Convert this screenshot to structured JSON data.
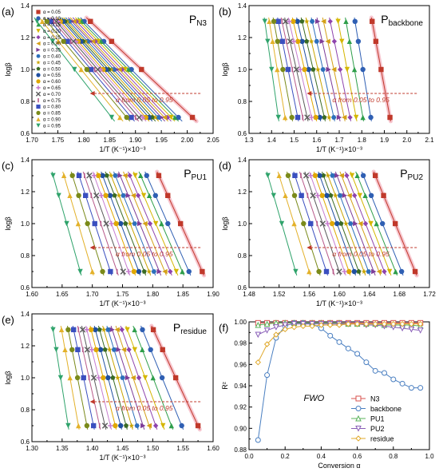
{
  "figure": {
    "caption": ""
  },
  "chart_data": [
    {
      "id": "a",
      "type": "scatter",
      "panel_label": "(a)",
      "title": "P",
      "title_sub": "N3",
      "xlabel": "1/T (K⁻¹)×10⁻³",
      "ylabel": "logβ",
      "xlim": [
        1.7,
        2.05
      ],
      "ylim": [
        0.6,
        1.4
      ],
      "xticks": [
        "1.70",
        "1.75",
        "1.80",
        "1.85",
        "1.90",
        "1.95",
        "2.00",
        "2.05"
      ],
      "yticks": [
        "0.6",
        "0.8",
        "1.0",
        "1.2",
        "1.4"
      ],
      "annotation": "α from 0.05 to 0.95",
      "legend_position": "left",
      "y_levels": [
        0.7,
        1.0,
        1.176,
        1.301
      ],
      "alphas": [
        "0.05",
        "0.10",
        "0.15",
        "0.20",
        "0.25",
        "0.30",
        "0.35",
        "0.40",
        "0.45",
        "0.50",
        "0.55",
        "0.60",
        "0.65",
        "0.70",
        "0.75",
        "0.80",
        "0.85",
        "0.90",
        "0.95"
      ],
      "x_top": [
        1.813,
        1.801,
        1.796,
        1.791,
        1.786,
        1.781,
        1.777,
        1.772,
        1.768,
        1.764,
        1.76,
        1.755,
        1.751,
        1.747,
        1.742,
        1.736,
        1.729,
        1.72,
        1.71
      ],
      "x_bottom": [
        2.01,
        1.983,
        1.976,
        1.969,
        1.962,
        1.956,
        1.95,
        1.944,
        1.938,
        1.932,
        1.926,
        1.92,
        1.914,
        1.907,
        1.9,
        1.892,
        1.883,
        1.87,
        1.854
      ]
    },
    {
      "id": "b",
      "type": "scatter",
      "panel_label": "(b)",
      "title": "P",
      "title_sub": "backbone",
      "xlabel": "1/T (K⁻¹)×10⁻³",
      "ylabel": "logβ",
      "xlim": [
        1.3,
        2.1
      ],
      "ylim": [
        0.6,
        1.4
      ],
      "xticks": [
        "1.3",
        "1.4",
        "1.5",
        "1.6",
        "1.7",
        "1.8",
        "1.9",
        "2.0",
        "2.1"
      ],
      "yticks": [
        "0.6",
        "0.8",
        "1.0",
        "1.2",
        "1.4"
      ],
      "annotation": "α from 0.05 to 0.95",
      "y_levels": [
        0.7,
        1.0,
        1.176,
        1.301
      ],
      "x_top": [
        1.846,
        1.77,
        1.73,
        1.695,
        1.66,
        1.63,
        1.605,
        1.58,
        1.556,
        1.535,
        1.515,
        1.496,
        1.478,
        1.462,
        1.446,
        1.43,
        1.41,
        1.39,
        1.37
      ],
      "x_bottom": [
        1.925,
        1.84,
        1.805,
        1.775,
        1.748,
        1.722,
        1.7,
        1.676,
        1.655,
        1.634,
        1.614,
        1.596,
        1.577,
        1.558,
        1.538,
        1.516,
        1.49,
        1.46,
        1.43
      ]
    },
    {
      "id": "c",
      "type": "scatter",
      "panel_label": "(c)",
      "title": "P",
      "title_sub": "PU1",
      "xlabel": "1/T (K⁻¹)×10⁻³",
      "ylabel": "logβ",
      "xlim": [
        1.6,
        1.9
      ],
      "ylim": [
        0.6,
        1.4
      ],
      "xticks": [
        "1.60",
        "1.65",
        "1.70",
        "1.75",
        "1.80",
        "1.85",
        "1.90"
      ],
      "yticks": [
        "0.6",
        "0.8",
        "1.0",
        "1.2",
        "1.4"
      ],
      "annotation": "α from 0.05 to 0.95",
      "y_levels": [
        0.7,
        1.0,
        1.176,
        1.301
      ],
      "x_top": [
        1.81,
        1.79,
        1.78,
        1.771,
        1.762,
        1.754,
        1.746,
        1.738,
        1.731,
        1.724,
        1.717,
        1.71,
        1.703,
        1.695,
        1.687,
        1.678,
        1.667,
        1.653,
        1.635
      ],
      "x_bottom": [
        1.882,
        1.86,
        1.849,
        1.839,
        1.829,
        1.82,
        1.811,
        1.802,
        1.794,
        1.786,
        1.777,
        1.769,
        1.76,
        1.751,
        1.741,
        1.73,
        1.717,
        1.7,
        1.68
      ]
    },
    {
      "id": "d",
      "type": "scatter",
      "panel_label": "(d)",
      "title": "P",
      "title_sub": "PU2",
      "xlabel": "1/T (K⁻¹)×10⁻³",
      "ylabel": "logβ",
      "xlim": [
        1.48,
        1.72
      ],
      "ylim": [
        0.6,
        1.4
      ],
      "xticks": [
        "1.48",
        "1.52",
        "1.56",
        "1.60",
        "1.64",
        "1.68",
        "1.72"
      ],
      "yticks": [
        "0.6",
        "0.8",
        "1.0",
        "1.2",
        "1.4"
      ],
      "annotation": "α from 0.05 to 0.95",
      "y_levels": [
        0.7,
        1.0,
        1.176,
        1.301
      ],
      "x_top": [
        1.648,
        1.632,
        1.624,
        1.617,
        1.61,
        1.603,
        1.597,
        1.591,
        1.585,
        1.579,
        1.574,
        1.568,
        1.562,
        1.556,
        1.549,
        1.541,
        1.532,
        1.52,
        1.505
      ],
      "x_bottom": [
        1.701,
        1.683,
        1.675,
        1.667,
        1.66,
        1.653,
        1.646,
        1.639,
        1.633,
        1.626,
        1.62,
        1.613,
        1.607,
        1.6,
        1.592,
        1.583,
        1.573,
        1.56,
        1.542
      ]
    },
    {
      "id": "e",
      "type": "scatter",
      "panel_label": "(e)",
      "title": "P",
      "title_sub": "residue",
      "xlabel": "1/T (K⁻¹)×10⁻³",
      "ylabel": "logβ",
      "xlim": [
        1.3,
        1.6
      ],
      "ylim": [
        0.6,
        1.4
      ],
      "xticks": [
        "1.30",
        "1.35",
        "1.40",
        "1.45",
        "1.50",
        "1.55",
        "1.60"
      ],
      "yticks": [
        "0.6",
        "0.8",
        "1.0",
        "1.2",
        "1.4"
      ],
      "annotation": "α from 0.05 to 0.95",
      "y_levels": [
        0.7,
        1.0,
        1.176,
        1.301
      ],
      "x_top": [
        1.501,
        1.483,
        1.47,
        1.458,
        1.449,
        1.441,
        1.433,
        1.426,
        1.419,
        1.412,
        1.405,
        1.398,
        1.391,
        1.384,
        1.377,
        1.369,
        1.36,
        1.349,
        1.335
      ],
      "x_bottom": [
        1.575,
        1.548,
        1.531,
        1.517,
        1.505,
        1.494,
        1.484,
        1.474,
        1.465,
        1.456,
        1.447,
        1.438,
        1.43,
        1.421,
        1.412,
        1.402,
        1.391,
        1.377,
        1.36
      ]
    },
    {
      "id": "f",
      "type": "line",
      "panel_label": "(f)",
      "title": "",
      "annotation": "FWO",
      "xlabel": "Conversion α",
      "ylabel": "R²",
      "xlim": [
        0.0,
        1.0
      ],
      "ylim": [
        0.88,
        1.0
      ],
      "xticks": [
        "0.0",
        "0.2",
        "0.4",
        "0.6",
        "0.8",
        "1.0"
      ],
      "yticks": [
        "0.88",
        "0.90",
        "0.92",
        "0.94",
        "0.96",
        "0.98",
        "1.00"
      ],
      "legend_position": "bottom-right",
      "x": [
        0.05,
        0.1,
        0.15,
        0.2,
        0.25,
        0.3,
        0.35,
        0.4,
        0.45,
        0.5,
        0.55,
        0.6,
        0.65,
        0.7,
        0.75,
        0.8,
        0.85,
        0.9,
        0.95
      ],
      "series": [
        {
          "name": "N3",
          "color": "#d9534f",
          "marker": "square",
          "values": [
            0.999,
            0.999,
            0.999,
            0.999,
            0.999,
            0.999,
            0.999,
            0.999,
            0.999,
            0.999,
            0.999,
            0.999,
            0.999,
            0.999,
            0.999,
            0.999,
            0.999,
            0.999,
            0.999
          ]
        },
        {
          "name": "backbone",
          "color": "#4a7fc1",
          "marker": "circle",
          "values": [
            0.889,
            0.95,
            0.985,
            0.996,
            0.999,
            0.999,
            0.998,
            0.994,
            0.987,
            0.981,
            0.975,
            0.97,
            0.962,
            0.954,
            0.952,
            0.946,
            0.942,
            0.938,
            0.938
          ]
        },
        {
          "name": "PU1",
          "color": "#59b35a",
          "marker": "triangle-up",
          "values": [
            0.997,
            0.998,
            0.999,
            0.999,
            0.999,
            0.999,
            0.999,
            0.999,
            0.999,
            0.999,
            0.998,
            0.998,
            0.998,
            0.998,
            0.997,
            0.997,
            0.997,
            0.997,
            0.996
          ]
        },
        {
          "name": "PU2",
          "color": "#8a5fb8",
          "marker": "triangle-down",
          "values": [
            0.988,
            0.992,
            0.995,
            0.997,
            0.998,
            0.998,
            0.998,
            0.998,
            0.998,
            0.998,
            0.998,
            0.998,
            0.997,
            0.997,
            0.996,
            0.995,
            0.994,
            0.993,
            0.992
          ]
        },
        {
          "name": "residue",
          "color": "#e0a82a",
          "marker": "diamond",
          "values": [
            0.962,
            0.979,
            0.988,
            0.993,
            0.995,
            0.996,
            0.996,
            0.997,
            0.997,
            0.997,
            0.998,
            0.998,
            0.998,
            0.998,
            0.998,
            0.998,
            0.998,
            0.998,
            0.998
          ]
        }
      ]
    }
  ],
  "style": {
    "alpha_colors": [
      "#c0392b",
      "#2f5fb3",
      "#2e9e4a",
      "#d4b600",
      "#8e44ad",
      "#d4a017",
      "#7d3c98",
      "#2c6fbb",
      "#c9a400",
      "#3a6b24",
      "#1f4fa0",
      "#e0a800",
      "#c77dcf",
      "#5a5a5a",
      "#b85a8a",
      "#3a4fbf",
      "#7a8a1a",
      "#e3b12a",
      "#2fa36b"
    ],
    "alpha_markers": [
      "square",
      "circle",
      "triangle-up",
      "triangle-down",
      "diamond",
      "triangle-left",
      "triangle-right",
      "hexagon",
      "star",
      "pentagon",
      "circle-half",
      "circle-half",
      "plus",
      "x",
      "bar",
      "square",
      "circle",
      "triangle-up",
      "triangle-down"
    ],
    "arrow_color": "#c0392b",
    "annotation_color": "#c0392b",
    "highlight_color": "#f7c6cf"
  }
}
